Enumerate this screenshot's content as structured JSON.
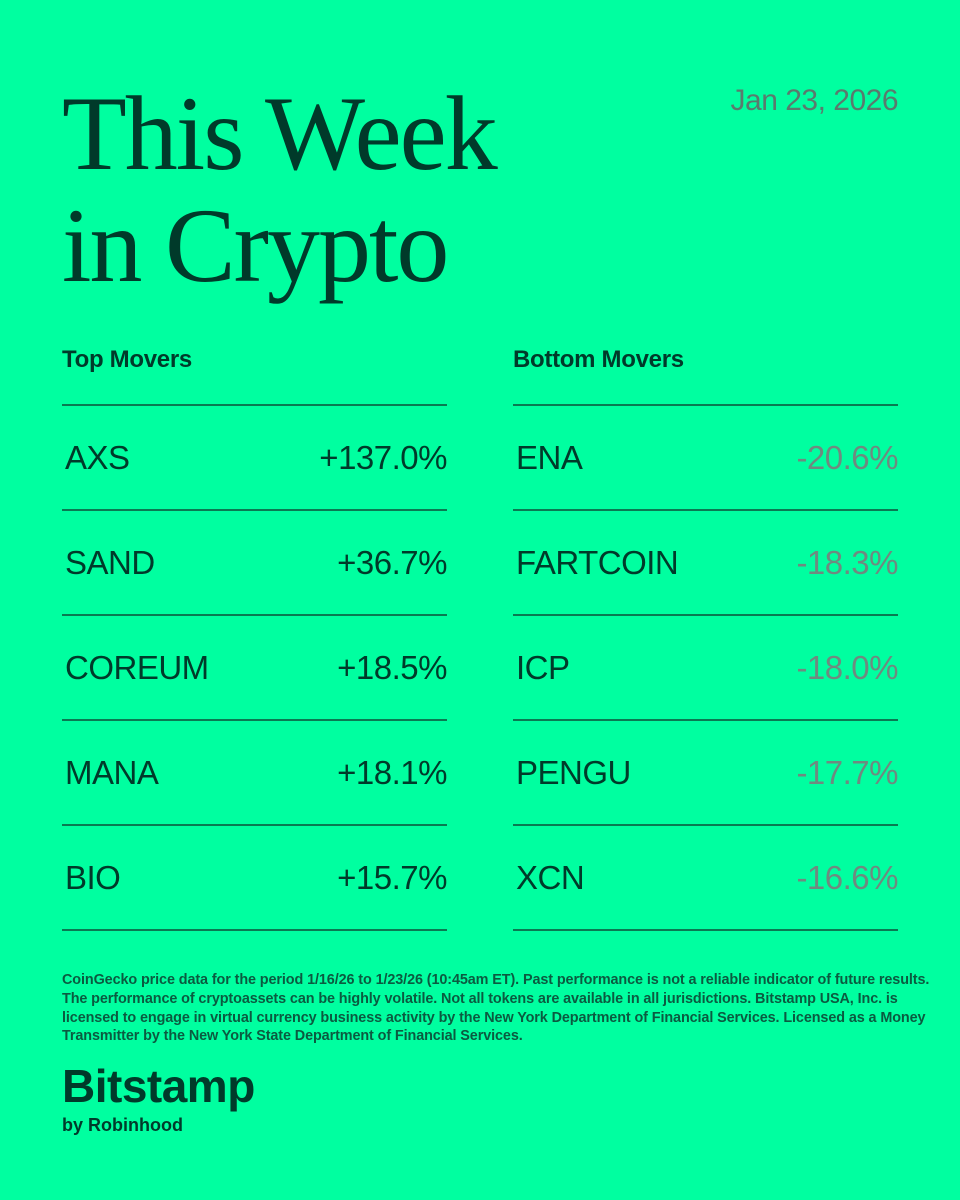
{
  "header": {
    "title_line1": "This Week",
    "title_line2": "in Crypto",
    "date": "Jan 23, 2026"
  },
  "top_movers": {
    "heading": "Top Movers",
    "items": [
      {
        "symbol": "AXS",
        "change": "+137.0%"
      },
      {
        "symbol": "SAND",
        "change": "+36.7%"
      },
      {
        "symbol": "COREUM",
        "change": "+18.5%"
      },
      {
        "symbol": "MANA",
        "change": "+18.1%"
      },
      {
        "symbol": "BIO",
        "change": "+15.7%"
      }
    ]
  },
  "bottom_movers": {
    "heading": "Bottom Movers",
    "items": [
      {
        "symbol": "ENA",
        "change": "-20.6%"
      },
      {
        "symbol": "FARTCOIN",
        "change": "-18.3%"
      },
      {
        "symbol": "ICP",
        "change": "-18.0%"
      },
      {
        "symbol": "PENGU",
        "change": "-17.7%"
      },
      {
        "symbol": "XCN",
        "change": "-16.6%"
      }
    ]
  },
  "disclaimer": "CoinGecko price data for the period 1/16/26 to 1/23/26 (10:45am ET). Past performance is not a reliable indicator of future results. The performance of cryptoassets can be highly volatile. Not all tokens are available in all jurisdictions. Bitstamp USA, Inc. is licensed to engage in virtual currency business activity by the New York Department of Financial Services. Licensed as a Money Transmitter by the New York State Department of Financial Services.",
  "brand": {
    "name": "Bitstamp",
    "tagline": "by Robinhood"
  },
  "colors": {
    "background": "#00ffa0",
    "text_dark": "#003a2a",
    "negative": "#6f8a80",
    "divider": "#0a7a52",
    "date": "#5a7a6e"
  }
}
